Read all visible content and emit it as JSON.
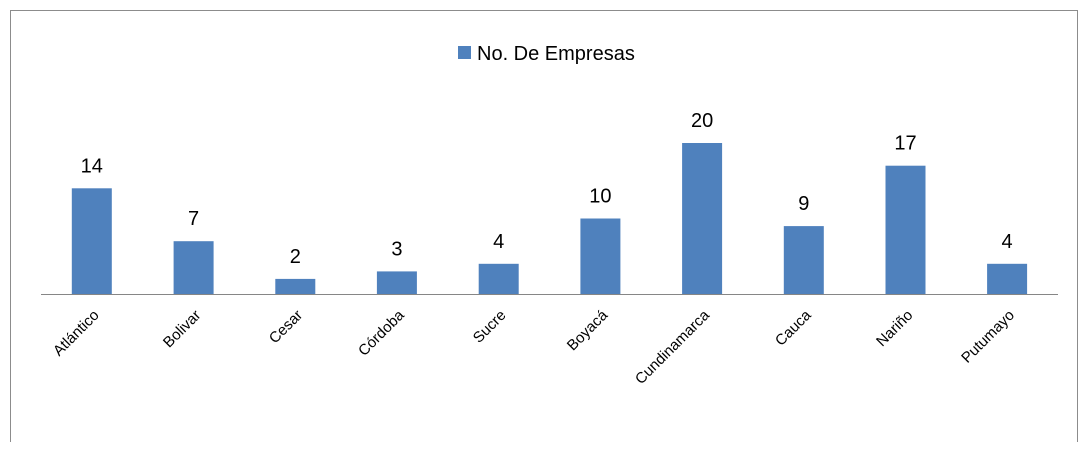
{
  "chart_data": {
    "type": "bar",
    "categories": [
      "Atlántico",
      "Bolivar",
      "Cesar",
      "Córdoba",
      "Sucre",
      "Boyacá",
      "Cundinamarca",
      "Cauca",
      "Nariño",
      "Putumayo"
    ],
    "series": [
      {
        "name": "No. De Empresas",
        "values": [
          14,
          7,
          2,
          3,
          4,
          10,
          20,
          9,
          17,
          4
        ],
        "color": "#4f81bd"
      }
    ],
    "title": "",
    "xlabel": "",
    "ylabel": "",
    "ylim": [
      0,
      20
    ],
    "data_labels": true,
    "legend_position": "top",
    "grid": false,
    "x_tick_rotation": -45
  }
}
